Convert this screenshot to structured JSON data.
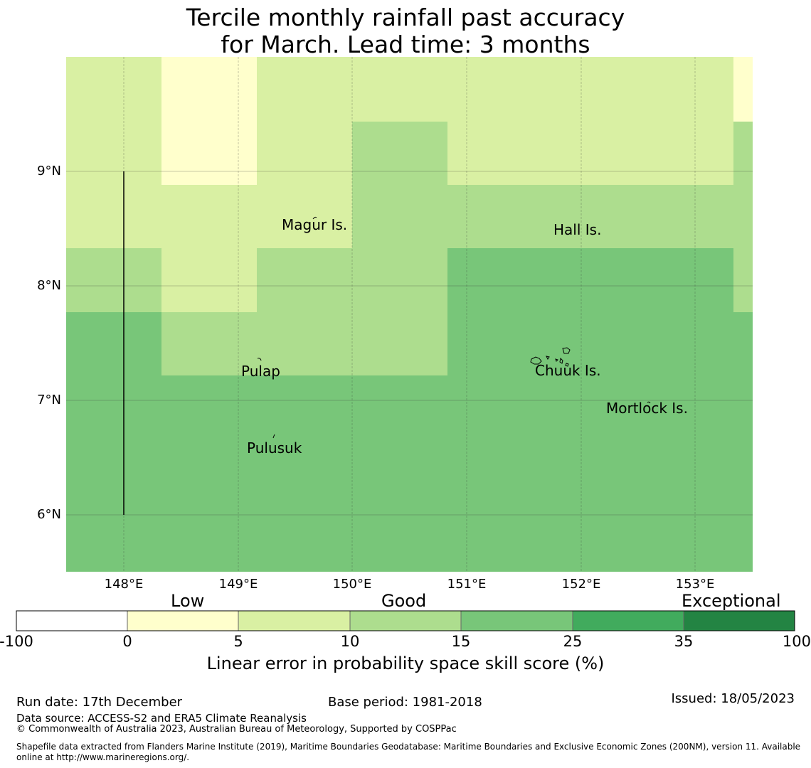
{
  "title": {
    "line1": "Tercile monthly rainfall past accuracy",
    "line2": "for March. Lead time: 3 months"
  },
  "map": {
    "lat_ticks": [
      "9°N",
      "8°N",
      "7°N",
      "6°N"
    ],
    "lon_ticks": [
      "148°E",
      "149°E",
      "150°E",
      "151°E",
      "152°E",
      "153°E"
    ],
    "places": {
      "magur": "Magur Is.",
      "hall": "Hall Is.",
      "pulap": "Pulap",
      "chuuk": "Chuuk Is.",
      "mortlock": "Mortlock Is.",
      "pulusuk": "Pulusuk"
    }
  },
  "colorbar": {
    "categories": {
      "low": "Low",
      "good": "Good",
      "exceptional": "Exceptional"
    },
    "ticks": [
      "-100",
      "0",
      "5",
      "10",
      "15",
      "25",
      "35",
      "100"
    ],
    "colors": [
      "#ffffff",
      "#ffffcc",
      "#d9f0a3",
      "#addd8e",
      "#78c679",
      "#41ab5d",
      "#238443"
    ],
    "label": "Linear error in probability space skill score (%)"
  },
  "footer": {
    "run_date": "Run date: 17th December",
    "base_period": "Base period: 1981-2018",
    "issued": "Issued: 18/05/2023",
    "data_source": "Data source: ACCESS-S2 and ERA5 Climate Reanalysis",
    "copyright": "© Commonwealth of Australia 2023, Australian Bureau of Meteorology, Supported by COSPPac",
    "shapefile_line1": "Shapefile data extracted from Flanders Marine Institute (2019), Maritime Boundaries Geodatabase: Maritime Boundaries and Exclusive Economic Zones (200NM), version 11. Available",
    "shapefile_line2": "online at http://www.marineregions.org/."
  }
}
